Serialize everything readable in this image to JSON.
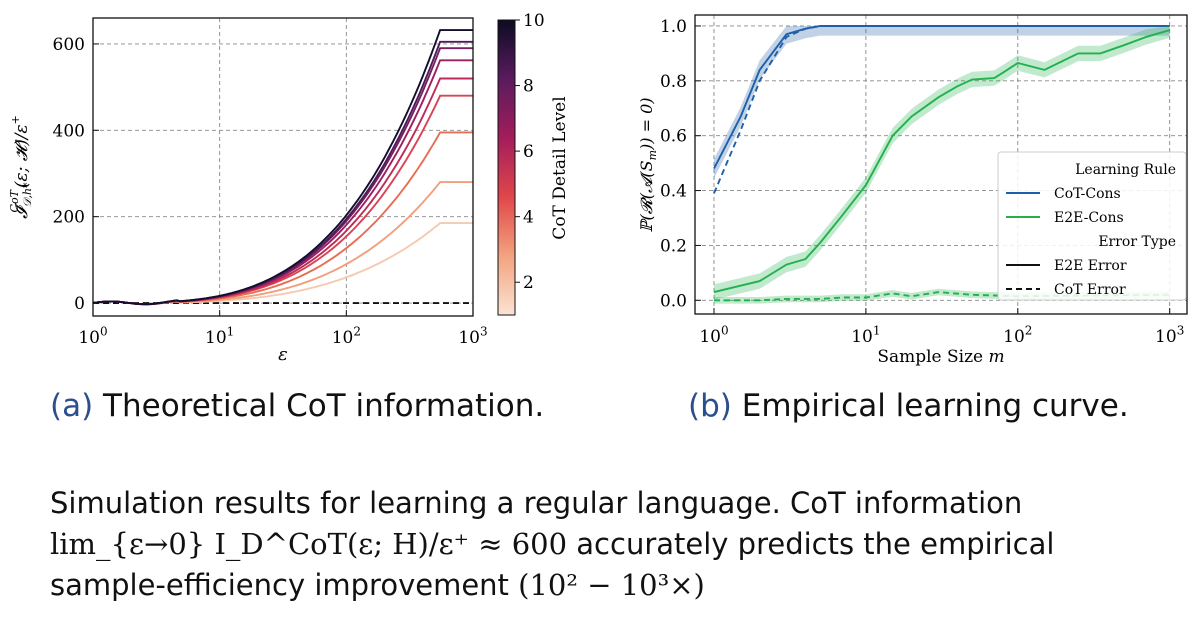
{
  "chart_data": [
    {
      "type": "line",
      "title": "",
      "xlabel": "ε",
      "ylabel": "I^CoT_{D,h*}(ε;H)/ε+",
      "xscale": "log",
      "xlim": [
        1,
        1000
      ],
      "ylim": [
        -30,
        660
      ],
      "xticks": [
        {
          "v": 1,
          "base": "10",
          "exp": "0"
        },
        {
          "v": 10,
          "base": "10",
          "exp": "1"
        },
        {
          "v": 100,
          "base": "10",
          "exp": "2"
        },
        {
          "v": 1000,
          "base": "10",
          "exp": "3"
        }
      ],
      "yticks": [
        0,
        200,
        400,
        600
      ],
      "grid": true,
      "colorbar": {
        "label": "CoT Detail Level",
        "min": 1,
        "max": 10,
        "ticks": [
          2,
          4,
          6,
          8,
          10
        ],
        "colors": [
          "#fbe3d3",
          "#f3a37f",
          "#e0474a",
          "#a31d5b",
          "#5a1b5e",
          "#0d0b24"
        ]
      },
      "series": [
        {
          "level": 1,
          "plateau": 185,
          "color": "#f6c9b1"
        },
        {
          "level": 2,
          "plateau": 280,
          "color": "#f0a07d"
        },
        {
          "level": 3,
          "plateau": 395,
          "color": "#e86d52"
        },
        {
          "level": 4,
          "plateau": 480,
          "color": "#d94352"
        },
        {
          "level": 5,
          "plateau": 520,
          "color": "#bf2b57"
        },
        {
          "level": 6,
          "plateau": 562,
          "color": "#9c1f5d"
        },
        {
          "level": 7,
          "plateau": 590,
          "color": "#761f61"
        },
        {
          "level": 8,
          "plateau": 605,
          "color": "#4f1a5c"
        },
        {
          "level": 10,
          "plateau": 632,
          "color": "#140e2c"
        }
      ],
      "baseline": {
        "y": 0,
        "style": "dashed",
        "color": "#111111"
      },
      "curve_knee_x": 550
    },
    {
      "type": "line",
      "title": "",
      "xlabel": "Sample Size m",
      "ylabel": "P(R(A(S_m)) = 0)",
      "xscale": "log",
      "xlim": [
        0.75,
        1300
      ],
      "ylim": [
        -0.05,
        1.04
      ],
      "xticks": [
        {
          "v": 1,
          "base": "10",
          "exp": "0"
        },
        {
          "v": 10,
          "base": "10",
          "exp": "1"
        },
        {
          "v": 100,
          "base": "10",
          "exp": "2"
        },
        {
          "v": 1000,
          "base": "10",
          "exp": "3"
        }
      ],
      "yticks": [
        0.0,
        0.2,
        0.4,
        0.6,
        0.8,
        1.0
      ],
      "grid": true,
      "legend": {
        "position": "right",
        "items": [
          {
            "label": "Learning Rule",
            "kind": "header"
          },
          {
            "label": "CoT-Cons",
            "kind": "line",
            "color": "#1f5fa8",
            "dash": false
          },
          {
            "label": "E2E-Cons",
            "kind": "line",
            "color": "#22b14c",
            "dash": false
          },
          {
            "label": "Error Type",
            "kind": "header"
          },
          {
            "label": "E2E Error",
            "kind": "line",
            "color": "#111111",
            "dash": false
          },
          {
            "label": "CoT Error",
            "kind": "line",
            "color": "#111111",
            "dash": true
          }
        ]
      },
      "series": [
        {
          "name": "CoT-Cons / E2E Error",
          "color": "#1f5fa8",
          "dash": false,
          "band": 0.035,
          "x": [
            1,
            1.5,
            2,
            3,
            4,
            5,
            7,
            10,
            20,
            50,
            100,
            1000
          ],
          "y": [
            0.48,
            0.67,
            0.84,
            0.97,
            0.99,
            1.0,
            1.0,
            1.0,
            1.0,
            1.0,
            1.0,
            1.0
          ]
        },
        {
          "name": "CoT-Cons / CoT Error",
          "color": "#1f5fa8",
          "dash": true,
          "band": 0,
          "x": [
            1,
            1.5,
            2,
            3,
            4,
            5,
            7,
            10,
            20,
            50,
            100,
            1000
          ],
          "y": [
            0.39,
            0.62,
            0.8,
            0.96,
            0.99,
            1.0,
            1.0,
            1.0,
            1.0,
            1.0,
            1.0,
            1.0
          ]
        },
        {
          "name": "E2E-Cons / E2E Error",
          "color": "#22b14c",
          "dash": false,
          "band": 0.028,
          "x": [
            1,
            2,
            3,
            4,
            5,
            7,
            10,
            15,
            20,
            30,
            40,
            50,
            70,
            80,
            100,
            150,
            250,
            350,
            500,
            700,
            1000
          ],
          "y": [
            0.03,
            0.07,
            0.13,
            0.15,
            0.21,
            0.31,
            0.42,
            0.6,
            0.67,
            0.74,
            0.78,
            0.805,
            0.81,
            0.83,
            0.865,
            0.84,
            0.9,
            0.9,
            0.93,
            0.96,
            0.985
          ]
        },
        {
          "name": "E2E-Cons / CoT Error",
          "color": "#22b14c",
          "dash": true,
          "band": 0.012,
          "x": [
            1,
            2,
            3,
            5,
            7,
            10,
            15,
            20,
            30,
            50,
            100,
            1000
          ],
          "y": [
            0.0,
            0.0,
            0.005,
            0.005,
            0.01,
            0.01,
            0.025,
            0.015,
            0.03,
            0.02,
            0.015,
            0.02
          ]
        }
      ]
    }
  ],
  "captions": {
    "left_label": "(a)",
    "left_text": " Theoretical CoT information.",
    "right_label": "(b)",
    "right_text": " Empirical learning curve."
  },
  "summary": {
    "line1": "Simulation results for learning a regular language. CoT information",
    "line2_math": "lim_{ε→0} I_D^CoT(ε; H)/ε⁺ ≈ 600",
    "line2_rest": " accurately predicts the empirical",
    "line3_text": "sample-efficiency improvement ",
    "line3_math": "(10² − 10³×)"
  }
}
